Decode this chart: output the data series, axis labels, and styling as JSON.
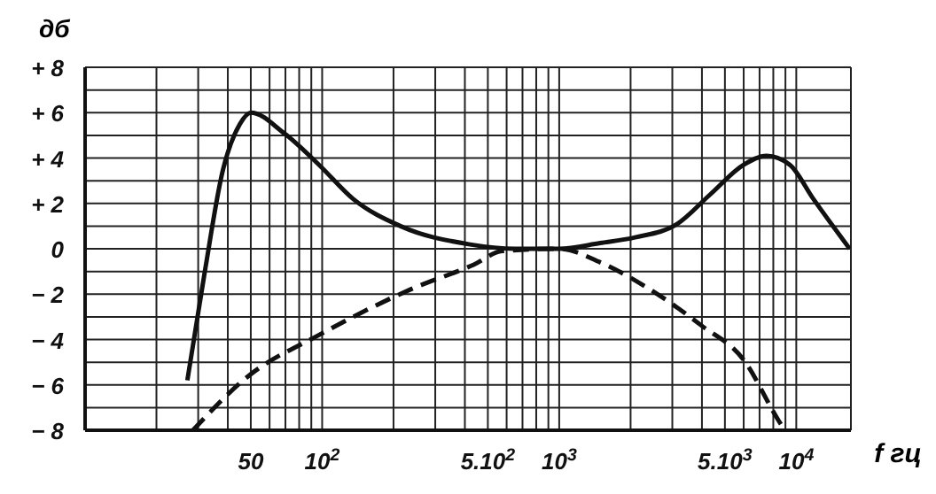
{
  "chart_data": {
    "type": "line",
    "xlabel": "f гц",
    "ylabel": "дб",
    "log": "x",
    "grid": true,
    "marker": "none",
    "xlim": [
      10,
      17000
    ],
    "ylim": [
      -8,
      8
    ],
    "xticks": [
      {
        "value": 10,
        "label": null
      },
      {
        "value": 20,
        "label": null
      },
      {
        "value": 30,
        "label": null
      },
      {
        "value": 40,
        "label": null
      },
      50,
      {
        "value": 60,
        "label": null
      },
      {
        "value": 70,
        "label": null
      },
      {
        "value": 80,
        "label": null
      },
      {
        "value": 90,
        "label": null
      },
      {
        "value": 100,
        "label": "10$^{2}$"
      },
      {
        "value": 200,
        "label": null
      },
      {
        "value": 300,
        "label": null
      },
      {
        "value": 400,
        "label": null
      },
      {
        "value": 500,
        "label": "5.10$^{2}$"
      },
      {
        "value": 600,
        "label": null
      },
      {
        "value": 700,
        "label": null
      },
      {
        "value": 800,
        "label": null
      },
      {
        "value": 900,
        "label": null
      },
      {
        "value": 1000,
        "label": "10$^{3}$"
      },
      {
        "value": 2000,
        "label": null
      },
      {
        "value": 3000,
        "label": null
      },
      {
        "value": 4000,
        "label": null
      },
      {
        "value": 5000,
        "label": "5.10$^{3}$"
      },
      {
        "value": 6000,
        "label": null
      },
      {
        "value": 7000,
        "label": null
      },
      {
        "value": 8000,
        "label": null
      },
      {
        "value": 9000,
        "label": null
      },
      {
        "value": 10000,
        "label": "10$^{4}$"
      },
      {
        "value": 17000,
        "label": null
      }
    ],
    "yticks": [
      {
        "value": -8,
        "label": "− 8"
      },
      {
        "value": -7,
        "label": null
      },
      {
        "value": -6,
        "label": "− 6"
      },
      {
        "value": -5,
        "label": null
      },
      {
        "value": -4,
        "label": "− 4"
      },
      {
        "value": -3,
        "label": null
      },
      {
        "value": -2,
        "label": "− 2"
      },
      {
        "value": -1,
        "label": null
      },
      0,
      {
        "value": 1,
        "label": null
      },
      {
        "value": 2,
        "label": "+ 2"
      },
      {
        "value": 3,
        "label": null
      },
      {
        "value": 4,
        "label": "+ 4"
      },
      {
        "value": 5,
        "label": null
      },
      {
        "value": 6,
        "label": "+ 6"
      },
      {
        "value": 7,
        "label": null
      },
      {
        "value": 8,
        "label": "+ 8"
      }
    ],
    "series": [
      {
        "color": "#111111",
        "line_style": "solid",
        "x": [
          27,
          32,
          38,
          45,
          50,
          69,
          97,
          135,
          214,
          415,
          650,
          1000,
          1490,
          2090,
          3150,
          4340,
          6000,
          7500,
          9400,
          11800,
          16800
        ],
        "values": [
          -5.8,
          -1,
          3.4,
          5.5,
          6,
          5.1,
          3.7,
          2.2,
          1,
          0.2,
          0,
          0,
          0.25,
          0.5,
          1.1,
          2.4,
          3.7,
          4.1,
          3.7,
          2.2,
          0
        ]
      },
      {
        "color": "#111111",
        "line_style": "dashed",
        "x": [
          28.5,
          49,
          97,
          235,
          436,
          575,
          1000,
          1490,
          2340,
          4000,
          6000,
          8450,
          8950
        ],
        "values": [
          -8,
          -5.6,
          -3.8,
          -1.8,
          -0.7,
          -0.1,
          0,
          -0.6,
          -1.7,
          -3.4,
          -4.9,
          -7.6,
          -8
        ]
      }
    ]
  }
}
